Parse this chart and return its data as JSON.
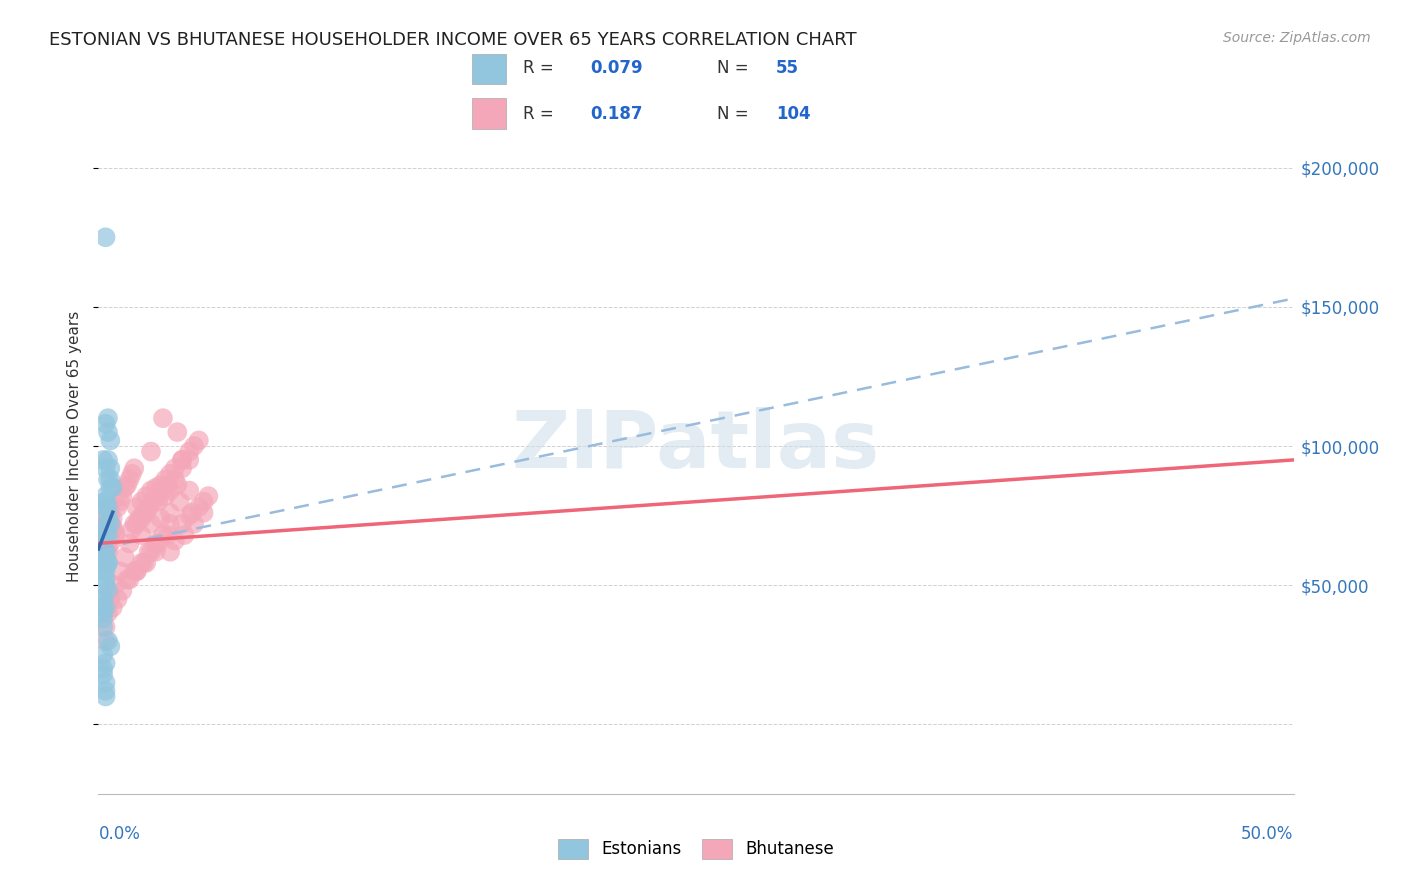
{
  "title": "ESTONIAN VS BHUTANESE HOUSEHOLDER INCOME OVER 65 YEARS CORRELATION CHART",
  "source": "Source: ZipAtlas.com",
  "ylabel": "Householder Income Over 65 years",
  "y_ticks": [
    50000,
    100000,
    150000,
    200000
  ],
  "y_tick_labels": [
    "$50,000",
    "$100,000",
    "$150,000",
    "$200,000"
  ],
  "xlim": [
    0.0,
    0.5
  ],
  "ylim": [
    -25000,
    225000
  ],
  "estonian_color": "#92C5DE",
  "bhutanese_color": "#F4A7B9",
  "trend_blue_solid": "#3366AA",
  "trend_blue_dashed": "#99BBDD",
  "trend_pink_solid": "#EE6677",
  "watermark": "ZIPatlas",
  "watermark_color": "#CCDDE8",
  "estonian_x": [
    0.003,
    0.004,
    0.003,
    0.004,
    0.005,
    0.004,
    0.005,
    0.005,
    0.006,
    0.003,
    0.003,
    0.004,
    0.004,
    0.005,
    0.003,
    0.004,
    0.002,
    0.003,
    0.003,
    0.004,
    0.003,
    0.002,
    0.003,
    0.003,
    0.004,
    0.002,
    0.003,
    0.002,
    0.003,
    0.003,
    0.004,
    0.004,
    0.005,
    0.002,
    0.003,
    0.003,
    0.003,
    0.002,
    0.003,
    0.003,
    0.004,
    0.002,
    0.002,
    0.002,
    0.002,
    0.002,
    0.003,
    0.002,
    0.002,
    0.004,
    0.005,
    0.003,
    0.003,
    0.003
  ],
  "estonian_y": [
    175000,
    110000,
    108000,
    105000,
    102000,
    95000,
    92000,
    88000,
    85000,
    80000,
    78000,
    75000,
    73000,
    72000,
    70000,
    68000,
    65000,
    62000,
    60000,
    58000,
    57000,
    55000,
    52000,
    50000,
    48000,
    45000,
    42000,
    40000,
    82000,
    80000,
    78000,
    88000,
    85000,
    95000,
    92000,
    70000,
    68000,
    65000,
    62000,
    55000,
    58000,
    42000,
    45000,
    38000,
    35000,
    25000,
    22000,
    20000,
    18000,
    30000,
    28000,
    15000,
    12000,
    10000
  ],
  "bhutanese_x": [
    0.002,
    0.003,
    0.003,
    0.004,
    0.004,
    0.005,
    0.005,
    0.006,
    0.006,
    0.007,
    0.008,
    0.009,
    0.01,
    0.011,
    0.012,
    0.013,
    0.014,
    0.015,
    0.003,
    0.003,
    0.004,
    0.004,
    0.005,
    0.005,
    0.006,
    0.007,
    0.016,
    0.018,
    0.02,
    0.022,
    0.024,
    0.026,
    0.028,
    0.03,
    0.032,
    0.035,
    0.015,
    0.017,
    0.019,
    0.021,
    0.023,
    0.025,
    0.027,
    0.029,
    0.032,
    0.035,
    0.038,
    0.014,
    0.016,
    0.018,
    0.02,
    0.025,
    0.028,
    0.03,
    0.033,
    0.022,
    0.03,
    0.035,
    0.038,
    0.04,
    0.042,
    0.033,
    0.027,
    0.018,
    0.022,
    0.026,
    0.03,
    0.034,
    0.038,
    0.016,
    0.02,
    0.024,
    0.032,
    0.036,
    0.04,
    0.044,
    0.012,
    0.015,
    0.018,
    0.021,
    0.024,
    0.027,
    0.03,
    0.038,
    0.042,
    0.046,
    0.006,
    0.008,
    0.01,
    0.013,
    0.016,
    0.019,
    0.022,
    0.025,
    0.029,
    0.035,
    0.039,
    0.044,
    0.003,
    0.003,
    0.004,
    0.005,
    0.007,
    0.009,
    0.011,
    0.013
  ],
  "bhutanese_y": [
    75000,
    68000,
    72000,
    70000,
    73000,
    75000,
    78000,
    74000,
    71000,
    69000,
    78000,
    80000,
    82000,
    85000,
    86000,
    88000,
    90000,
    92000,
    60000,
    58000,
    62000,
    64000,
    67000,
    65000,
    70000,
    68000,
    78000,
    80000,
    82000,
    84000,
    85000,
    86000,
    88000,
    90000,
    92000,
    95000,
    72000,
    74000,
    76000,
    78000,
    80000,
    82000,
    84000,
    86000,
    88000,
    92000,
    95000,
    70000,
    72000,
    74000,
    76000,
    80000,
    82000,
    84000,
    86000,
    98000,
    62000,
    95000,
    98000,
    100000,
    102000,
    105000,
    110000,
    68000,
    72000,
    74000,
    76000,
    80000,
    84000,
    55000,
    58000,
    62000,
    66000,
    68000,
    72000,
    76000,
    52000,
    55000,
    58000,
    62000,
    65000,
    68000,
    72000,
    75000,
    78000,
    82000,
    42000,
    45000,
    48000,
    52000,
    55000,
    58000,
    62000,
    65000,
    68000,
    72000,
    76000,
    80000,
    30000,
    35000,
    40000,
    45000,
    50000,
    55000,
    60000,
    65000
  ]
}
